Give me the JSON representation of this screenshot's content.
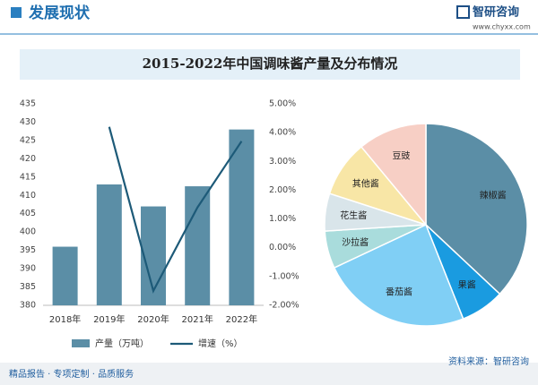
{
  "header": {
    "title": "发展现状",
    "brand": "智研咨询",
    "url": "www.chyxx.com"
  },
  "panel_title": "2015-2022年中国调味酱产量及分布情况",
  "chart_data": [
    {
      "type": "bar-line",
      "categories": [
        "2018年",
        "2019年",
        "2020年",
        "2021年",
        "2022年"
      ],
      "series": [
        {
          "name": "产量（万吨）",
          "type": "bar",
          "color": "#5b8ea6",
          "values": [
            396,
            413,
            407,
            412.5,
            428
          ]
        },
        {
          "name": "增速（%）",
          "type": "line",
          "axis": "y2",
          "color": "#1d5a78",
          "values": [
            null,
            4.2,
            -1.5,
            1.4,
            3.7
          ]
        }
      ],
      "ylim": [
        380,
        435
      ],
      "yticks": [
        380,
        385,
        390,
        395,
        400,
        405,
        410,
        415,
        420,
        425,
        430,
        435
      ],
      "y2lim": [
        -2,
        5
      ],
      "y2ticks": [
        {
          "value": -2,
          "label": "-2.00%"
        },
        {
          "value": -1,
          "label": "-1.00%"
        },
        {
          "value": 0,
          "label": "0.00%"
        },
        {
          "value": 1,
          "label": "1.00%"
        },
        {
          "value": 2,
          "label": "2.00%"
        },
        {
          "value": 3,
          "label": "3.00%"
        },
        {
          "value": 4,
          "label": "4.00%"
        },
        {
          "value": 5,
          "label": "5.00%"
        }
      ],
      "legend": "bottom"
    },
    {
      "type": "pie",
      "categories": [
        "辣椒酱",
        "果酱",
        "番茄酱",
        "沙拉酱",
        "花生酱",
        "其他酱",
        "豆豉"
      ],
      "values": [
        37,
        7,
        24,
        6,
        6,
        9,
        11
      ],
      "colors": [
        "#5b8ea6",
        "#1a9be0",
        "#80cff5",
        "#a9dcdc",
        "#d9e5ea",
        "#f8e6a6",
        "#f7cfc5"
      ]
    }
  ],
  "footer": {
    "slogan": "精品报告 · 专项定制 · 品质服务",
    "source": "资料来源：智研咨询"
  }
}
